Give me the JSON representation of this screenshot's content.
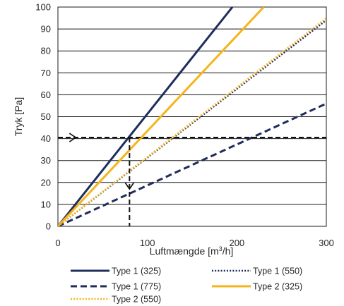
{
  "chart_data": {
    "type": "line",
    "title": "",
    "xlabel_prefix": "Luftmængde  [m",
    "xlabel_sup": "3",
    "xlabel_suffix": "/h]",
    "ylabel": "Tryk [Pa]",
    "xlim": [
      0,
      300
    ],
    "ylim": [
      0,
      100
    ],
    "xticks": [
      "0",
      "100",
      "200",
      "300"
    ],
    "yticks": [
      "0",
      "10",
      "20",
      "30",
      "40",
      "50",
      "60",
      "70",
      "80",
      "90",
      "100"
    ],
    "grid": "horizontal",
    "legend_position": "bottom",
    "series": [
      {
        "name": "Type 1 (325)",
        "color": "#1f2d5c",
        "dash": "solid",
        "x": [
          0,
          195
        ],
        "y": [
          0,
          100
        ]
      },
      {
        "name": "Type 1 (550)",
        "color": "#1f2d5c",
        "dash": "dotted",
        "x": [
          0,
          300
        ],
        "y": [
          0,
          94
        ]
      },
      {
        "name": "Type 1 (775)",
        "color": "#1f2d5c",
        "dash": "dashed",
        "x": [
          0,
          300
        ],
        "y": [
          0,
          56
        ]
      },
      {
        "name": "Type 2 (325)",
        "color": "#f5b41a",
        "dash": "solid",
        "x": [
          0,
          230
        ],
        "y": [
          0,
          100
        ]
      },
      {
        "name": "Type 2 (550)",
        "color": "#f5b41a",
        "dash": "dotted",
        "x": [
          0,
          300
        ],
        "y": [
          0,
          95
        ]
      }
    ],
    "annotations": {
      "horizontal_line_y": 40.5,
      "vertical_line_x": 80,
      "arrow_horizontal_x": 20,
      "arrow_vertical_y": 17
    }
  }
}
